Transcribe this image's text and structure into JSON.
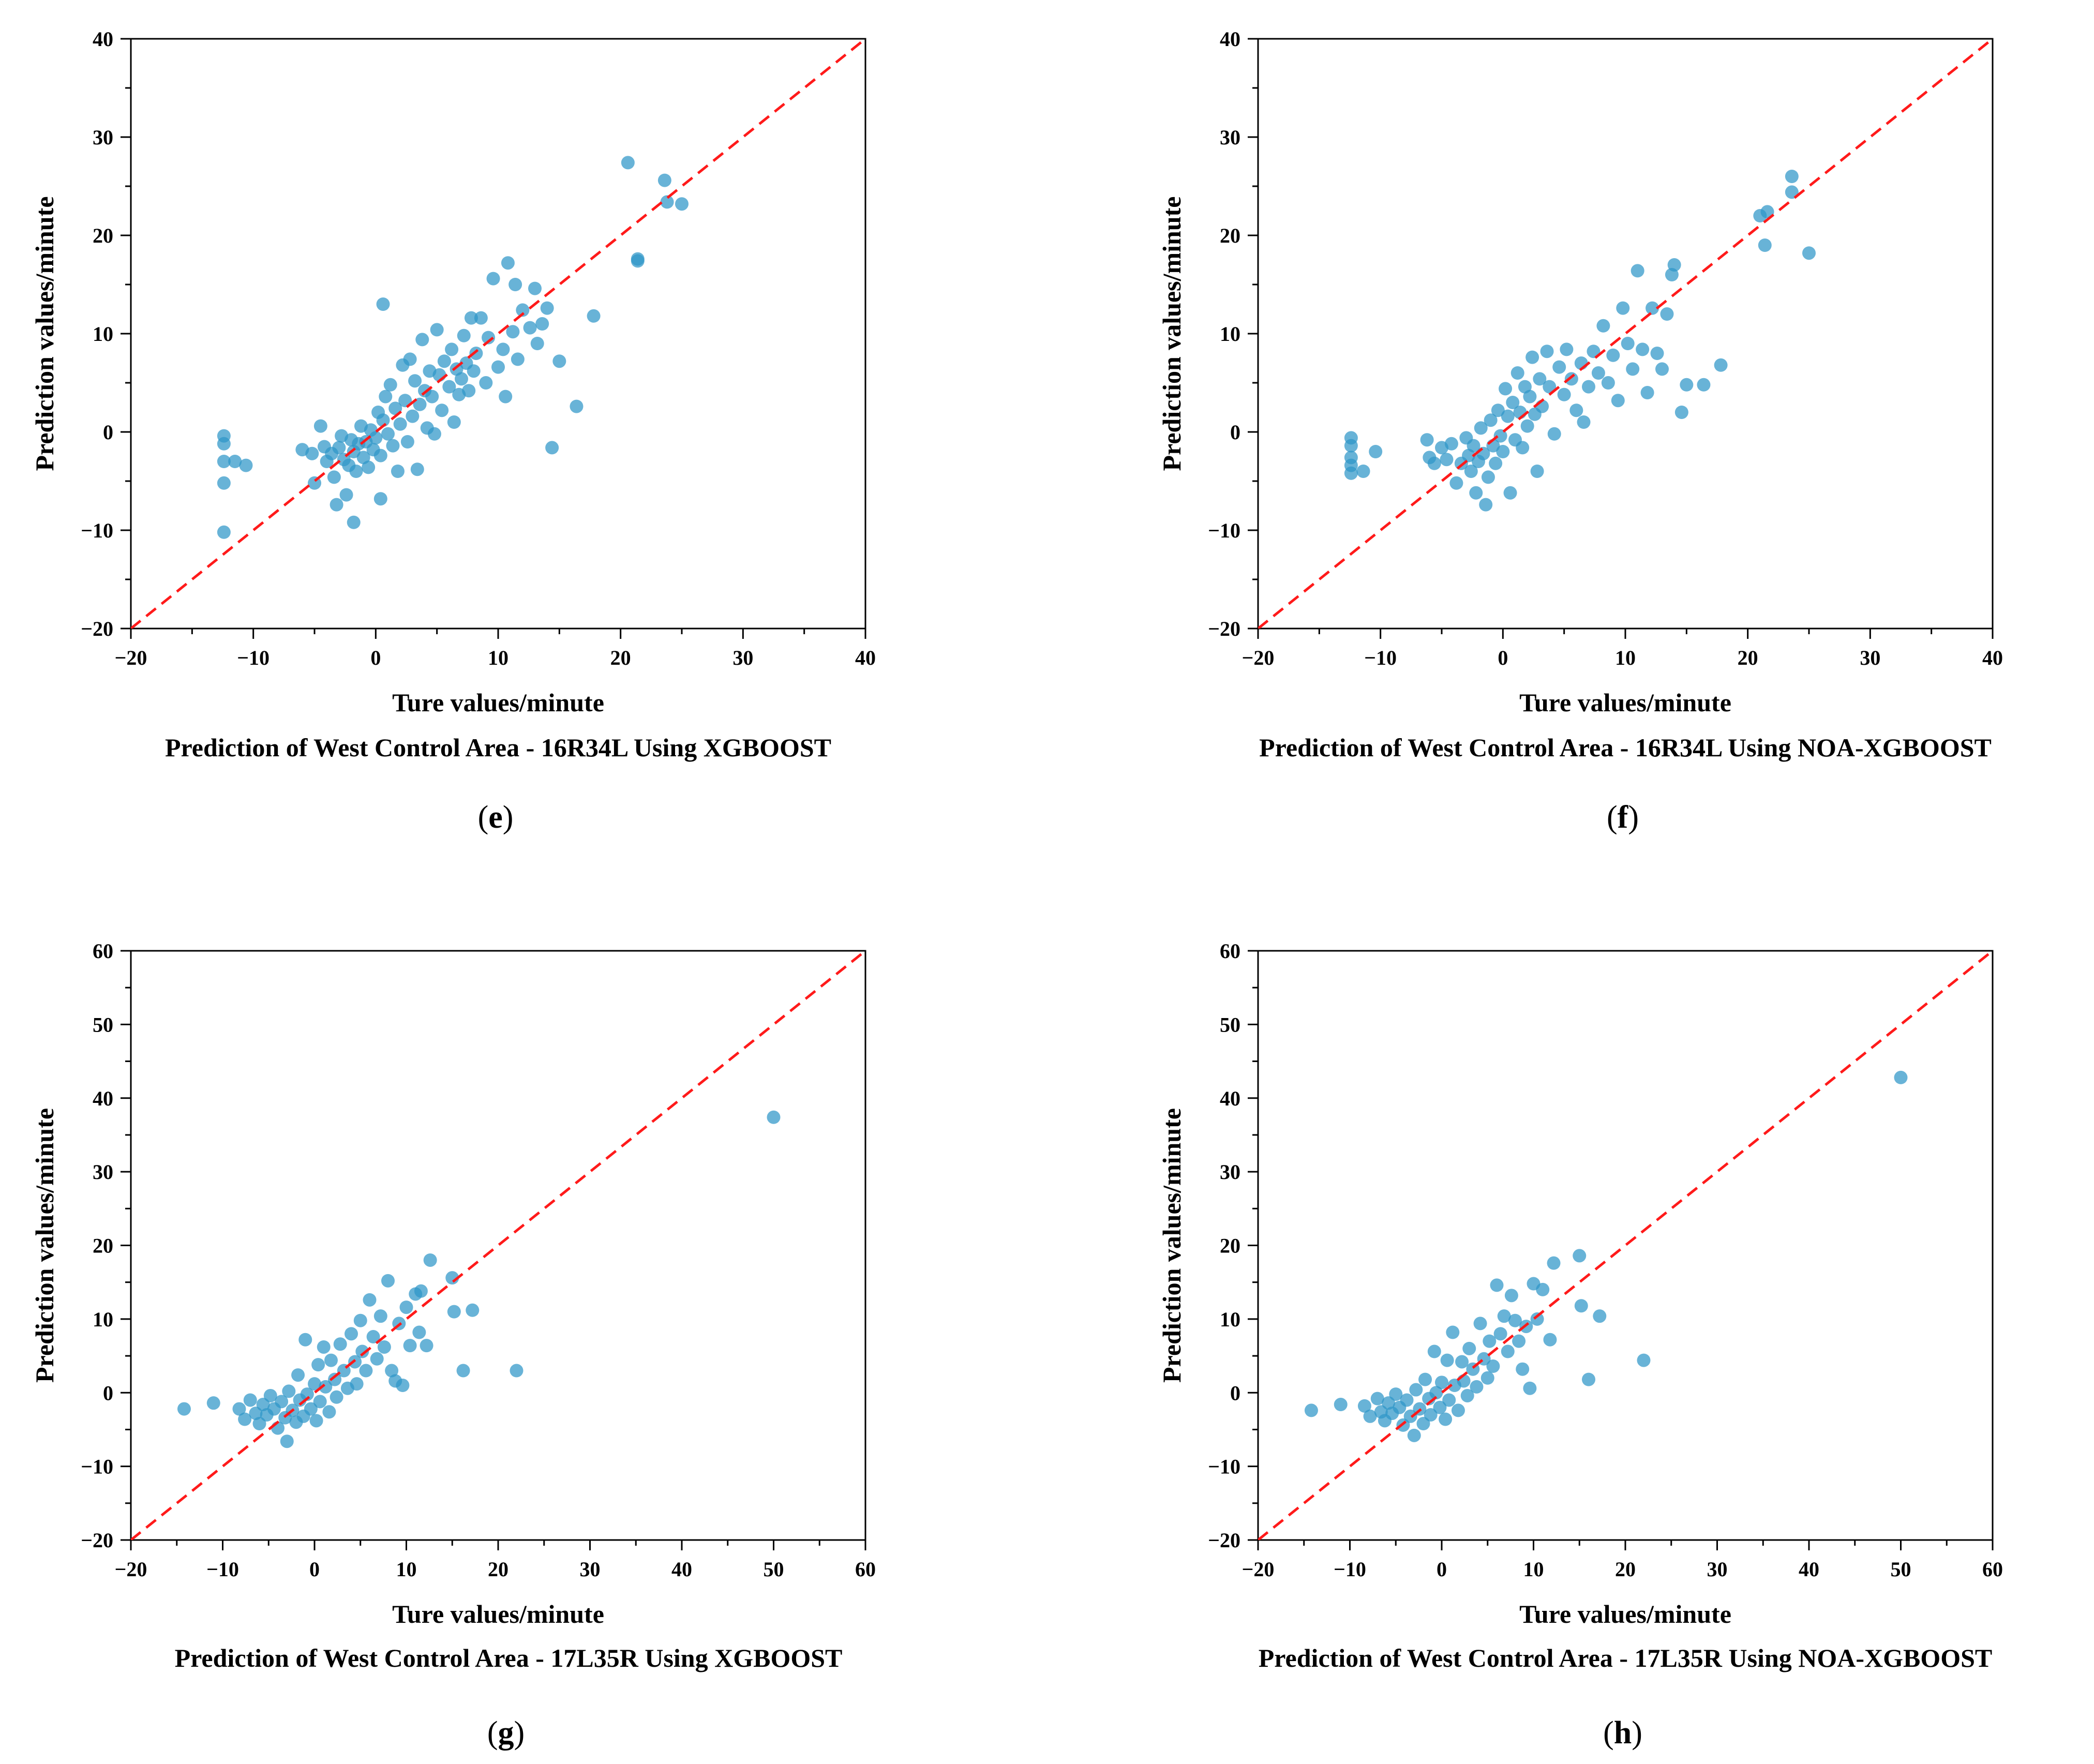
{
  "figure": {
    "style": {
      "marker_color": "#2e96c8",
      "marker_opacity": 0.72,
      "diagonal_color": "#ff1a1a",
      "axis_color": "#000000"
    }
  },
  "chart_data": [
    {
      "panel": "e",
      "type": "scatter",
      "title": "Prediction of West Control Area - 16R34L Using XGBOOST",
      "xlabel": "Ture values/minute",
      "ylabel": "Prediction values/minute",
      "xlim": [
        -20,
        40
      ],
      "ylim": [
        -20,
        40
      ],
      "xticks": [
        -20,
        -10,
        0,
        10,
        20,
        30,
        40
      ],
      "yticks": [
        -20,
        -10,
        0,
        10,
        20,
        30,
        40
      ],
      "reference_line": "y = x (red dashed)",
      "points": [
        [
          -12.4,
          -0.4
        ],
        [
          -12.4,
          -1.2
        ],
        [
          -12.4,
          -3.0
        ],
        [
          -12.4,
          -5.2
        ],
        [
          -12.4,
          -10.2
        ],
        [
          -11.5,
          -3.0
        ],
        [
          -10.6,
          -3.4
        ],
        [
          -6.0,
          -1.8
        ],
        [
          -5.2,
          -2.2
        ],
        [
          -5.0,
          -5.2
        ],
        [
          -4.5,
          0.6
        ],
        [
          -4.2,
          -1.5
        ],
        [
          -4.0,
          -3.0
        ],
        [
          -3.6,
          -2.2
        ],
        [
          -3.4,
          -4.6
        ],
        [
          -3.2,
          -7.4
        ],
        [
          -3.0,
          -1.6
        ],
        [
          -2.8,
          -0.4
        ],
        [
          -2.6,
          -2.8
        ],
        [
          -2.4,
          -6.4
        ],
        [
          -2.2,
          -3.4
        ],
        [
          -2.0,
          -0.8
        ],
        [
          -1.8,
          -2.0
        ],
        [
          -1.6,
          -4.0
        ],
        [
          -1.8,
          -9.2
        ],
        [
          -1.4,
          -1.2
        ],
        [
          -1.2,
          0.6
        ],
        [
          -1.0,
          -2.6
        ],
        [
          -0.8,
          -1.0
        ],
        [
          -0.6,
          -3.6
        ],
        [
          -0.4,
          0.2
        ],
        [
          -0.2,
          -1.8
        ],
        [
          0.0,
          -0.6
        ],
        [
          0.2,
          2.0
        ],
        [
          0.4,
          -2.4
        ],
        [
          0.6,
          1.2
        ],
        [
          0.4,
          -6.8
        ],
        [
          0.6,
          13.0
        ],
        [
          0.8,
          3.6
        ],
        [
          1.0,
          -0.2
        ],
        [
          1.2,
          4.8
        ],
        [
          1.4,
          -1.4
        ],
        [
          1.6,
          2.4
        ],
        [
          1.8,
          -4.0
        ],
        [
          2.0,
          0.8
        ],
        [
          2.2,
          6.8
        ],
        [
          2.4,
          3.2
        ],
        [
          2.6,
          -1.0
        ],
        [
          2.8,
          7.4
        ],
        [
          3.0,
          1.6
        ],
        [
          3.2,
          5.2
        ],
        [
          3.4,
          -3.8
        ],
        [
          3.6,
          2.8
        ],
        [
          3.8,
          9.4
        ],
        [
          4.0,
          4.2
        ],
        [
          4.2,
          0.4
        ],
        [
          4.4,
          6.2
        ],
        [
          4.6,
          3.6
        ],
        [
          4.8,
          -0.2
        ],
        [
          5.0,
          10.4
        ],
        [
          5.2,
          5.8
        ],
        [
          5.4,
          2.2
        ],
        [
          5.6,
          7.2
        ],
        [
          6.0,
          4.6
        ],
        [
          6.2,
          8.4
        ],
        [
          6.4,
          1.0
        ],
        [
          6.6,
          6.4
        ],
        [
          6.8,
          3.8
        ],
        [
          7.0,
          5.4
        ],
        [
          7.2,
          9.8
        ],
        [
          7.4,
          7.0
        ],
        [
          7.6,
          4.2
        ],
        [
          7.8,
          11.6
        ],
        [
          8.0,
          6.2
        ],
        [
          8.2,
          8.0
        ],
        [
          8.6,
          11.6
        ],
        [
          9.0,
          5.0
        ],
        [
          9.2,
          9.6
        ],
        [
          9.6,
          15.6
        ],
        [
          10.0,
          6.6
        ],
        [
          10.4,
          8.4
        ],
        [
          10.6,
          3.6
        ],
        [
          10.8,
          17.2
        ],
        [
          11.2,
          10.2
        ],
        [
          11.4,
          15.0
        ],
        [
          11.6,
          7.4
        ],
        [
          12.0,
          12.4
        ],
        [
          12.6,
          10.6
        ],
        [
          13.0,
          14.6
        ],
        [
          13.2,
          9.0
        ],
        [
          13.6,
          11.0
        ],
        [
          14.0,
          12.6
        ],
        [
          14.4,
          -1.6
        ],
        [
          15.0,
          7.2
        ],
        [
          16.4,
          2.6
        ],
        [
          17.8,
          11.8
        ],
        [
          20.6,
          27.4
        ],
        [
          21.4,
          17.4
        ],
        [
          21.4,
          17.6
        ],
        [
          23.6,
          25.6
        ],
        [
          23.8,
          23.4
        ],
        [
          25.0,
          23.2
        ]
      ]
    },
    {
      "panel": "f",
      "type": "scatter",
      "title": "Prediction of West Control Area - 16R34L Using NOA-XGBOOST",
      "xlabel": "Ture values/minute",
      "ylabel": "Prediction values/minute",
      "xlim": [
        -20,
        40
      ],
      "ylim": [
        -20,
        40
      ],
      "xticks": [
        -20,
        -10,
        0,
        10,
        20,
        30,
        40
      ],
      "yticks": [
        -20,
        -10,
        0,
        10,
        20,
        30,
        40
      ],
      "reference_line": "y = x (red dashed)",
      "points": [
        [
          -12.4,
          -0.6
        ],
        [
          -12.4,
          -1.4
        ],
        [
          -12.4,
          -2.6
        ],
        [
          -12.4,
          -3.4
        ],
        [
          -12.4,
          -4.2
        ],
        [
          -11.4,
          -4.0
        ],
        [
          -10.4,
          -2.0
        ],
        [
          -6.2,
          -0.8
        ],
        [
          -6.0,
          -2.6
        ],
        [
          -5.6,
          -3.2
        ],
        [
          -5.0,
          -1.6
        ],
        [
          -4.6,
          -2.8
        ],
        [
          -4.2,
          -1.2
        ],
        [
          -3.8,
          -5.2
        ],
        [
          -3.4,
          -3.2
        ],
        [
          -3.0,
          -0.6
        ],
        [
          -2.8,
          -2.4
        ],
        [
          -2.6,
          -4.0
        ],
        [
          -2.4,
          -1.4
        ],
        [
          -2.2,
          -6.2
        ],
        [
          -2.0,
          -3.0
        ],
        [
          -1.8,
          0.4
        ],
        [
          -1.6,
          -2.2
        ],
        [
          -1.4,
          -7.4
        ],
        [
          -1.2,
          -4.6
        ],
        [
          -1.0,
          1.2
        ],
        [
          -0.8,
          -1.4
        ],
        [
          -0.6,
          -3.2
        ],
        [
          -0.4,
          2.2
        ],
        [
          -0.2,
          -0.4
        ],
        [
          0.0,
          -2.0
        ],
        [
          0.2,
          4.4
        ],
        [
          0.4,
          1.6
        ],
        [
          0.6,
          -6.2
        ],
        [
          0.8,
          3.0
        ],
        [
          1.0,
          -0.8
        ],
        [
          1.2,
          6.0
        ],
        [
          1.4,
          2.0
        ],
        [
          1.6,
          -1.6
        ],
        [
          1.8,
          4.6
        ],
        [
          2.0,
          0.6
        ],
        [
          2.2,
          3.6
        ],
        [
          2.4,
          7.6
        ],
        [
          2.6,
          1.8
        ],
        [
          2.8,
          -4.0
        ],
        [
          3.0,
          5.4
        ],
        [
          3.2,
          2.6
        ],
        [
          3.6,
          8.2
        ],
        [
          3.8,
          4.6
        ],
        [
          4.2,
          -0.2
        ],
        [
          4.6,
          6.6
        ],
        [
          5.0,
          3.8
        ],
        [
          5.2,
          8.4
        ],
        [
          5.6,
          5.4
        ],
        [
          6.0,
          2.2
        ],
        [
          6.4,
          7.0
        ],
        [
          6.6,
          1.0
        ],
        [
          7.0,
          4.6
        ],
        [
          7.4,
          8.2
        ],
        [
          7.8,
          6.0
        ],
        [
          8.2,
          10.8
        ],
        [
          8.6,
          5.0
        ],
        [
          9.0,
          7.8
        ],
        [
          9.4,
          3.2
        ],
        [
          9.8,
          12.6
        ],
        [
          10.2,
          9.0
        ],
        [
          10.6,
          6.4
        ],
        [
          11.0,
          16.4
        ],
        [
          11.4,
          8.4
        ],
        [
          11.8,
          4.0
        ],
        [
          12.2,
          12.6
        ],
        [
          12.6,
          8.0
        ],
        [
          13.0,
          6.4
        ],
        [
          13.4,
          12.0
        ],
        [
          13.8,
          16.0
        ],
        [
          14.0,
          17.0
        ],
        [
          14.6,
          2.0
        ],
        [
          15.0,
          4.8
        ],
        [
          16.4,
          4.8
        ],
        [
          17.8,
          6.8
        ],
        [
          21.0,
          22.0
        ],
        [
          21.6,
          22.4
        ],
        [
          21.4,
          19.0
        ],
        [
          23.6,
          26.0
        ],
        [
          23.6,
          24.4
        ],
        [
          25.0,
          18.2
        ]
      ]
    },
    {
      "panel": "g",
      "type": "scatter",
      "title": "Prediction of West Control Area - 17L35R Using XGBOOST",
      "xlabel": "Ture values/minute",
      "ylabel": "Prediction values/minute",
      "xlim": [
        -20,
        60
      ],
      "ylim": [
        -20,
        60
      ],
      "xticks": [
        -20,
        -10,
        0,
        10,
        20,
        30,
        40,
        50,
        60
      ],
      "yticks": [
        -20,
        -10,
        0,
        10,
        20,
        30,
        40,
        50,
        60
      ],
      "reference_line": "y = x (red dashed)",
      "points": [
        [
          -14.2,
          -2.2
        ],
        [
          -11.0,
          -1.4
        ],
        [
          -8.2,
          -2.2
        ],
        [
          -7.6,
          -3.6
        ],
        [
          -7.0,
          -1.0
        ],
        [
          -6.4,
          -2.8
        ],
        [
          -6.0,
          -4.2
        ],
        [
          -5.6,
          -1.6
        ],
        [
          -5.2,
          -3.0
        ],
        [
          -4.8,
          -0.4
        ],
        [
          -4.4,
          -2.2
        ],
        [
          -4.0,
          -4.8
        ],
        [
          -3.6,
          -1.2
        ],
        [
          -3.2,
          -3.4
        ],
        [
          -3.0,
          -6.6
        ],
        [
          -2.8,
          0.2
        ],
        [
          -2.4,
          -2.4
        ],
        [
          -2.0,
          -4.0
        ],
        [
          -1.8,
          2.4
        ],
        [
          -1.6,
          -1.0
        ],
        [
          -1.2,
          -3.2
        ],
        [
          -1.0,
          7.2
        ],
        [
          -0.8,
          -0.2
        ],
        [
          -0.4,
          -2.2
        ],
        [
          0.0,
          1.2
        ],
        [
          0.2,
          -3.8
        ],
        [
          0.4,
          3.8
        ],
        [
          0.6,
          -1.2
        ],
        [
          1.0,
          6.2
        ],
        [
          1.2,
          0.8
        ],
        [
          1.6,
          -2.6
        ],
        [
          1.8,
          4.4
        ],
        [
          2.2,
          1.8
        ],
        [
          2.4,
          -0.6
        ],
        [
          2.8,
          6.6
        ],
        [
          3.2,
          3.0
        ],
        [
          3.6,
          0.6
        ],
        [
          4.0,
          8.0
        ],
        [
          4.4,
          4.2
        ],
        [
          4.6,
          1.2
        ],
        [
          5.0,
          9.8
        ],
        [
          5.2,
          5.6
        ],
        [
          5.6,
          3.0
        ],
        [
          6.0,
          12.6
        ],
        [
          6.4,
          7.6
        ],
        [
          6.8,
          4.6
        ],
        [
          7.2,
          10.4
        ],
        [
          7.6,
          6.2
        ],
        [
          8.0,
          15.2
        ],
        [
          8.4,
          3.0
        ],
        [
          8.8,
          1.6
        ],
        [
          9.2,
          9.4
        ],
        [
          9.6,
          1.0
        ],
        [
          10.0,
          11.6
        ],
        [
          10.4,
          6.4
        ],
        [
          11.0,
          13.4
        ],
        [
          11.4,
          8.2
        ],
        [
          11.6,
          13.8
        ],
        [
          12.2,
          6.4
        ],
        [
          12.6,
          18.0
        ],
        [
          15.0,
          15.6
        ],
        [
          15.2,
          11.0
        ],
        [
          16.2,
          3.0
        ],
        [
          17.2,
          11.2
        ],
        [
          22.0,
          3.0
        ],
        [
          50.0,
          37.4
        ]
      ]
    },
    {
      "panel": "h",
      "type": "scatter",
      "title": "Prediction of West Control Area - 17L35R Using NOA-XGBOOST",
      "xlabel": "Ture values/minute",
      "ylabel": "Prediction values/minute",
      "xlim": [
        -20,
        60
      ],
      "ylim": [
        -20,
        60
      ],
      "xticks": [
        -20,
        -10,
        0,
        10,
        20,
        30,
        40,
        50,
        60
      ],
      "yticks": [
        -20,
        -10,
        0,
        10,
        20,
        30,
        40,
        50,
        60
      ],
      "reference_line": "y = x (red dashed)",
      "points": [
        [
          -14.2,
          -2.4
        ],
        [
          -11.0,
          -1.6
        ],
        [
          -8.4,
          -1.8
        ],
        [
          -7.8,
          -3.2
        ],
        [
          -7.0,
          -0.8
        ],
        [
          -6.6,
          -2.6
        ],
        [
          -6.2,
          -3.8
        ],
        [
          -5.8,
          -1.4
        ],
        [
          -5.4,
          -2.8
        ],
        [
          -5.0,
          -0.2
        ],
        [
          -4.6,
          -2.0
        ],
        [
          -4.2,
          -4.4
        ],
        [
          -3.8,
          -1.0
        ],
        [
          -3.4,
          -3.2
        ],
        [
          -3.0,
          -5.8
        ],
        [
          -2.8,
          0.4
        ],
        [
          -2.4,
          -2.2
        ],
        [
          -2.0,
          -4.2
        ],
        [
          -1.8,
          1.8
        ],
        [
          -1.4,
          -0.8
        ],
        [
          -1.2,
          -3.0
        ],
        [
          -0.8,
          5.6
        ],
        [
          -0.6,
          0.0
        ],
        [
          -0.2,
          -2.0
        ],
        [
          0.0,
          1.4
        ],
        [
          0.4,
          -3.6
        ],
        [
          0.6,
          4.4
        ],
        [
          0.8,
          -1.0
        ],
        [
          1.2,
          8.2
        ],
        [
          1.4,
          1.0
        ],
        [
          1.8,
          -2.4
        ],
        [
          2.2,
          4.2
        ],
        [
          2.4,
          1.6
        ],
        [
          2.8,
          -0.4
        ],
        [
          3.0,
          6.0
        ],
        [
          3.4,
          3.2
        ],
        [
          3.8,
          0.8
        ],
        [
          4.2,
          9.4
        ],
        [
          4.6,
          4.6
        ],
        [
          5.0,
          2.0
        ],
        [
          5.2,
          7.0
        ],
        [
          5.6,
          3.6
        ],
        [
          6.0,
          14.6
        ],
        [
          6.4,
          8.0
        ],
        [
          6.8,
          10.4
        ],
        [
          7.2,
          5.6
        ],
        [
          7.6,
          13.2
        ],
        [
          8.0,
          9.8
        ],
        [
          8.4,
          7.0
        ],
        [
          8.8,
          3.2
        ],
        [
          9.2,
          9.0
        ],
        [
          9.6,
          0.6
        ],
        [
          10.0,
          14.8
        ],
        [
          10.4,
          10.0
        ],
        [
          11.0,
          14.0
        ],
        [
          11.8,
          7.2
        ],
        [
          12.2,
          17.6
        ],
        [
          15.0,
          18.6
        ],
        [
          15.2,
          11.8
        ],
        [
          16.0,
          1.8
        ],
        [
          17.2,
          10.4
        ],
        [
          22.0,
          4.4
        ],
        [
          50.0,
          42.8
        ]
      ]
    }
  ],
  "panels": [
    {
      "label": "(e)",
      "letter": "e",
      "title": "Prediction of West Control Area - 16R34L Using XGBOOST"
    },
    {
      "label": "(f)",
      "letter": "f",
      "title": "Prediction of West Control Area - 16R34L Using NOA-XGBOOST"
    },
    {
      "label": "(g)",
      "letter": "g",
      "title": "Prediction of West Control Area - 17L35R Using XGBOOST"
    },
    {
      "label": "(h)",
      "letter": "h",
      "title": "Prediction of West Control Area - 17L35R Using NOA-XGBOOST"
    }
  ]
}
